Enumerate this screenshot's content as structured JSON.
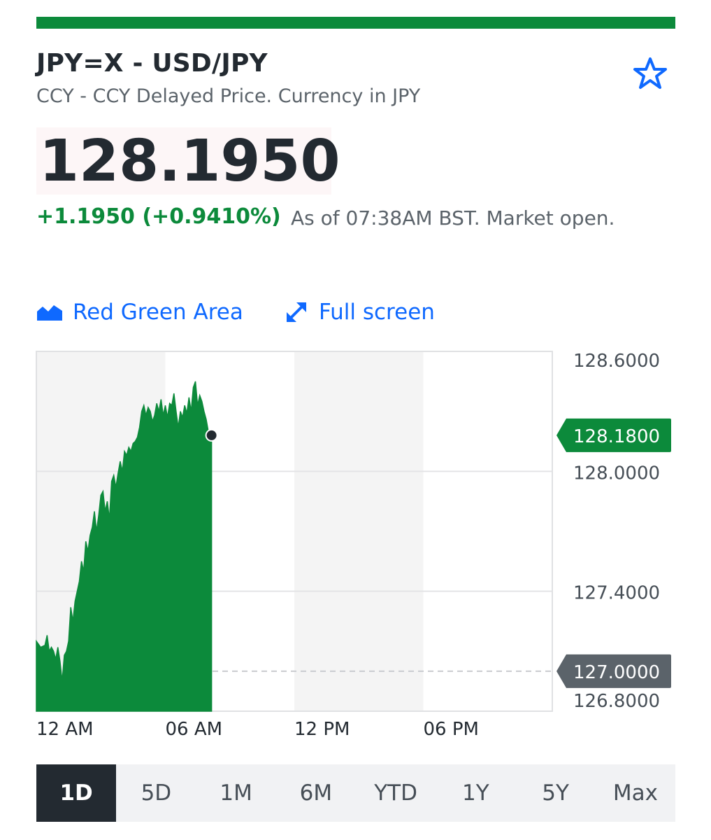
{
  "header": {
    "title": "JPY=X - USD/JPY",
    "subtitle": "CCY - CCY Delayed Price. Currency in JPY"
  },
  "quote": {
    "price": "128.1950",
    "change": "+1.1950 (+0.9410%)",
    "as_of": "As of 07:38AM BST. Market open."
  },
  "controls": {
    "chart_type": "Red Green Area",
    "full_screen": "Full screen"
  },
  "colors": {
    "accent_green": "#0c8a3b",
    "link_blue": "#0f69ff",
    "text_dark": "#232a31",
    "text_muted": "#5b636a",
    "prev_close_tag": "#5b636a"
  },
  "icons": {
    "watchlist": "star-outline-icon",
    "chart_type": "area-chart-icon",
    "full_screen": "expand-arrows-icon"
  },
  "chart_data": {
    "type": "area",
    "x_unit": "hours since 12 AM",
    "xlim": [
      0,
      24
    ],
    "ylim": [
      126.8,
      128.6
    ],
    "x_ticks": [
      {
        "x": 0,
        "label": "12 AM"
      },
      {
        "x": 6,
        "label": "06 AM"
      },
      {
        "x": 12,
        "label": "12 PM"
      },
      {
        "x": 18,
        "label": "06 PM"
      }
    ],
    "y_ticks": [
      {
        "y": 128.6,
        "label": "128.6000"
      },
      {
        "y": 128.0,
        "label": "128.0000"
      },
      {
        "y": 127.4,
        "label": "127.4000"
      },
      {
        "y": 126.8,
        "label": "126.8000"
      }
    ],
    "current": {
      "y": 128.18,
      "label": "128.1800"
    },
    "previous_close": {
      "y": 127.0,
      "label": "127.0000"
    },
    "shaded_bands": [
      [
        0,
        6
      ],
      [
        12,
        18
      ]
    ],
    "x": [
      0,
      0.2,
      0.4,
      0.5,
      0.6,
      0.7,
      0.8,
      0.9,
      1.0,
      1.1,
      1.2,
      1.3,
      1.4,
      1.5,
      1.6,
      1.7,
      1.8,
      1.9,
      2.0,
      2.1,
      2.2,
      2.3,
      2.4,
      2.5,
      2.6,
      2.7,
      2.8,
      2.9,
      3.0,
      3.1,
      3.2,
      3.3,
      3.4,
      3.5,
      3.6,
      3.7,
      3.8,
      3.9,
      4.0,
      4.1,
      4.2,
      4.3,
      4.4,
      4.5,
      4.6,
      4.7,
      4.8,
      4.9,
      5.0,
      5.1,
      5.2,
      5.3,
      5.4,
      5.5,
      5.6,
      5.7,
      5.8,
      5.9,
      6.0,
      6.1,
      6.2,
      6.3,
      6.4,
      6.5,
      6.6,
      6.7,
      6.8,
      6.9,
      7.0,
      7.1,
      7.2,
      7.3,
      7.4,
      7.5,
      7.6,
      7.7,
      7.8,
      7.9,
      8.0,
      8.15
    ],
    "y": [
      127.15,
      127.12,
      127.13,
      127.18,
      127.1,
      127.12,
      127.1,
      127.06,
      127.12,
      127.05,
      126.95,
      127.08,
      127.1,
      127.15,
      127.32,
      127.25,
      127.35,
      127.4,
      127.45,
      127.55,
      127.5,
      127.65,
      127.6,
      127.68,
      127.72,
      127.8,
      127.7,
      127.78,
      127.88,
      127.9,
      127.8,
      127.85,
      127.76,
      127.95,
      127.98,
      127.92,
      127.99,
      128.05,
      128.0,
      128.1,
      128.08,
      128.12,
      128.1,
      128.14,
      128.15,
      128.17,
      128.22,
      128.3,
      128.33,
      128.28,
      128.32,
      128.3,
      128.25,
      128.28,
      128.34,
      128.3,
      128.36,
      128.28,
      128.33,
      128.27,
      128.34,
      128.33,
      128.39,
      128.3,
      128.22,
      128.3,
      128.27,
      128.33,
      128.29,
      128.37,
      128.3,
      128.42,
      128.45,
      128.33,
      128.38,
      128.35,
      128.3,
      128.26,
      128.2,
      128.18
    ]
  },
  "ranges": [
    "1D",
    "5D",
    "1M",
    "6M",
    "YTD",
    "1Y",
    "5Y",
    "Max"
  ],
  "active_range": "1D"
}
